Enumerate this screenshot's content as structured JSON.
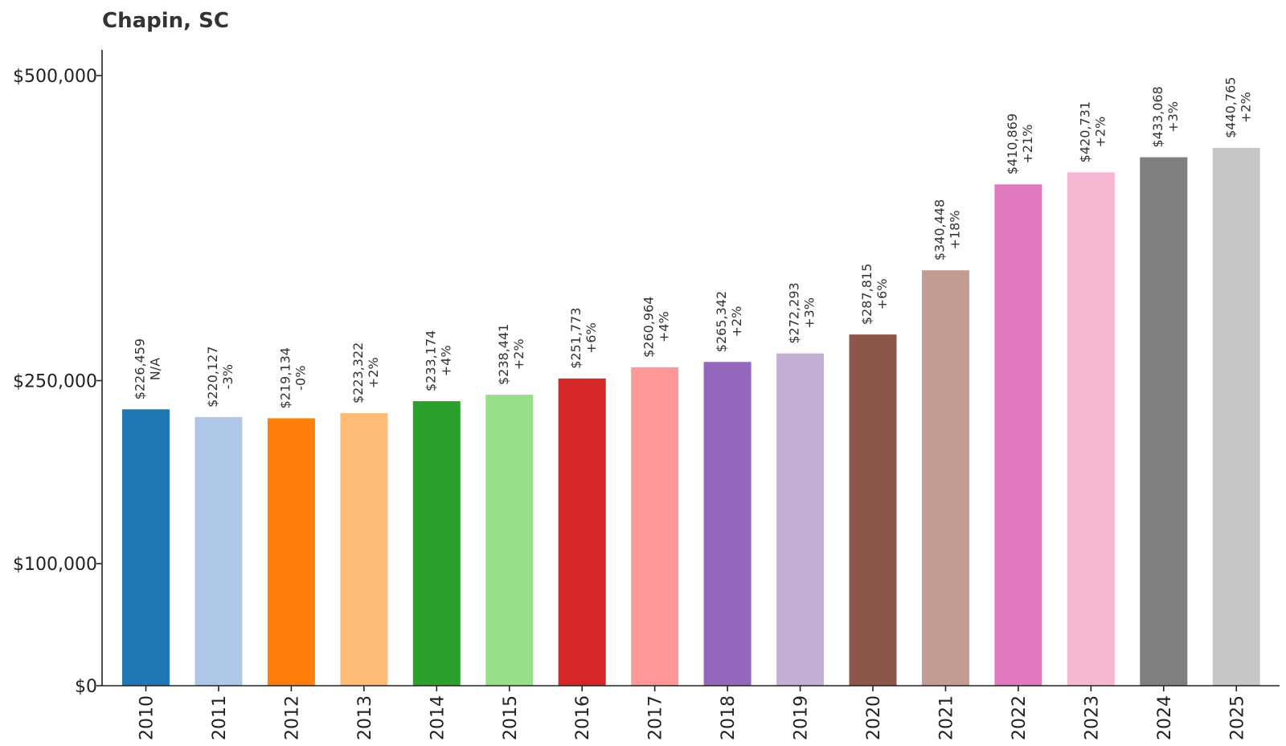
{
  "chart_data": {
    "type": "bar",
    "title": "Chapin, SC",
    "xlabel": "",
    "ylabel": "",
    "ylim": [
      0,
      520000
    ],
    "yticks": [
      {
        "value": 0,
        "label": "$0"
      },
      {
        "value": 100000,
        "label": "$100,000"
      },
      {
        "value": 250000,
        "label": "$250,000"
      },
      {
        "value": 500000,
        "label": "$500,000"
      }
    ],
    "grid": false,
    "legend": "none",
    "categories": [
      "2010",
      "2011",
      "2012",
      "2013",
      "2014",
      "2015",
      "2016",
      "2017",
      "2018",
      "2019",
      "2020",
      "2021",
      "2022",
      "2023",
      "2024",
      "2025"
    ],
    "values": [
      226459,
      220127,
      219134,
      223322,
      233174,
      238441,
      251773,
      260964,
      265342,
      272293,
      287815,
      340448,
      410869,
      420731,
      433068,
      440765
    ],
    "value_labels": [
      "$226,459",
      "$220,127",
      "$219,134",
      "$223,322",
      "$233,174",
      "$238,441",
      "$251,773",
      "$260,964",
      "$265,342",
      "$272,293",
      "$287,815",
      "$340,448",
      "$410,869",
      "$420,731",
      "$433,068",
      "$440,765"
    ],
    "change_labels": [
      "N/A",
      "-3%",
      "-0%",
      "+2%",
      "+4%",
      "+2%",
      "+6%",
      "+4%",
      "+2%",
      "+3%",
      "+6%",
      "+18%",
      "+21%",
      "+2%",
      "+3%",
      "+2%"
    ],
    "colors": [
      "#1f77b4",
      "#aec7e8",
      "#ff7f0e",
      "#ffbb78",
      "#2ca02c",
      "#98df8a",
      "#d62728",
      "#ff9896",
      "#9467bd",
      "#c5b0d5",
      "#8c564b",
      "#c49c94",
      "#e377c2",
      "#f7b6d2",
      "#7f7f7f",
      "#c7c7c7"
    ]
  }
}
